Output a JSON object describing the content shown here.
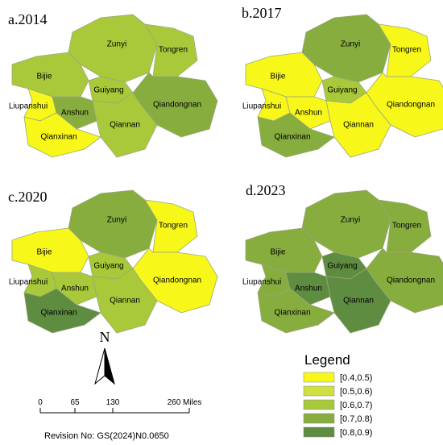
{
  "panels": [
    {
      "title": "a.2014",
      "regions": [
        {
          "name": "Zunyi",
          "color": "#a9c93a"
        },
        {
          "name": "Tongren",
          "color": "#a9c93a"
        },
        {
          "name": "Bijie",
          "color": "#a9c93a"
        },
        {
          "name": "Guiyang",
          "color": "#a9c93a"
        },
        {
          "name": "Qiandongnan",
          "color": "#86ad3e"
        },
        {
          "name": "Liupanshui",
          "color": "#f7f71a"
        },
        {
          "name": "Anshun",
          "color": "#86ad3e"
        },
        {
          "name": "Qiannan",
          "color": "#a9c93a"
        },
        {
          "name": "Qianxinan",
          "color": "#f7f71a"
        }
      ]
    },
    {
      "title": "b.2017",
      "regions": [
        {
          "name": "Zunyi",
          "color": "#86ad3e"
        },
        {
          "name": "Tongren",
          "color": "#f7f71a"
        },
        {
          "name": "Bijie",
          "color": "#f7f71a"
        },
        {
          "name": "Guiyang",
          "color": "#a9c93a"
        },
        {
          "name": "Qiandongnan",
          "color": "#f7f71a"
        },
        {
          "name": "Liupanshui",
          "color": "#f7f71a"
        },
        {
          "name": "Anshun",
          "color": "#f7f71a"
        },
        {
          "name": "Qiannan",
          "color": "#f7f71a"
        },
        {
          "name": "Qianxinan",
          "color": "#86ad3e"
        }
      ]
    },
    {
      "title": "c.2020",
      "regions": [
        {
          "name": "Zunyi",
          "color": "#86ad3e"
        },
        {
          "name": "Tongren",
          "color": "#f7f71a"
        },
        {
          "name": "Bijie",
          "color": "#f7f71a"
        },
        {
          "name": "Guiyang",
          "color": "#a9c93a"
        },
        {
          "name": "Qiandongnan",
          "color": "#f7f71a"
        },
        {
          "name": "Liupanshui",
          "color": "#a9c93a"
        },
        {
          "name": "Anshun",
          "color": "#a9c93a"
        },
        {
          "name": "Qiannan",
          "color": "#a9c93a"
        },
        {
          "name": "Qianxinan",
          "color": "#5e8c40"
        }
      ]
    },
    {
      "title": "d.2023",
      "regions": [
        {
          "name": "Zunyi",
          "color": "#86ad3e"
        },
        {
          "name": "Tongren",
          "color": "#86ad3e"
        },
        {
          "name": "Bijie",
          "color": "#86ad3e"
        },
        {
          "name": "Guiyang",
          "color": "#5e8c40"
        },
        {
          "name": "Qiandongnan",
          "color": "#86ad3e"
        },
        {
          "name": "Liupanshui",
          "color": "#86ad3e"
        },
        {
          "name": "Anshun",
          "color": "#5e8c40"
        },
        {
          "name": "Qiannan",
          "color": "#5e8c40"
        },
        {
          "name": "Qianxinan",
          "color": "#86ad3e"
        }
      ]
    }
  ],
  "north": "N",
  "scale_bar": {
    "labels": [
      "0",
      "65",
      "130",
      "260 Miles"
    ]
  },
  "revision": "Revision No: GS(2024)N0.0650",
  "legend": {
    "title": "Legend",
    "items": [
      {
        "label": "[0.4,0.5)",
        "color": "#f7f71a"
      },
      {
        "label": "[0.5,0.6)",
        "color": "#cfe040"
      },
      {
        "label": "[0.6,0.7)",
        "color": "#a9c93a"
      },
      {
        "label": "[0.7,0.8)",
        "color": "#86ad3e"
      },
      {
        "label": "[0.8,0.9)",
        "color": "#5e8c40"
      }
    ]
  }
}
